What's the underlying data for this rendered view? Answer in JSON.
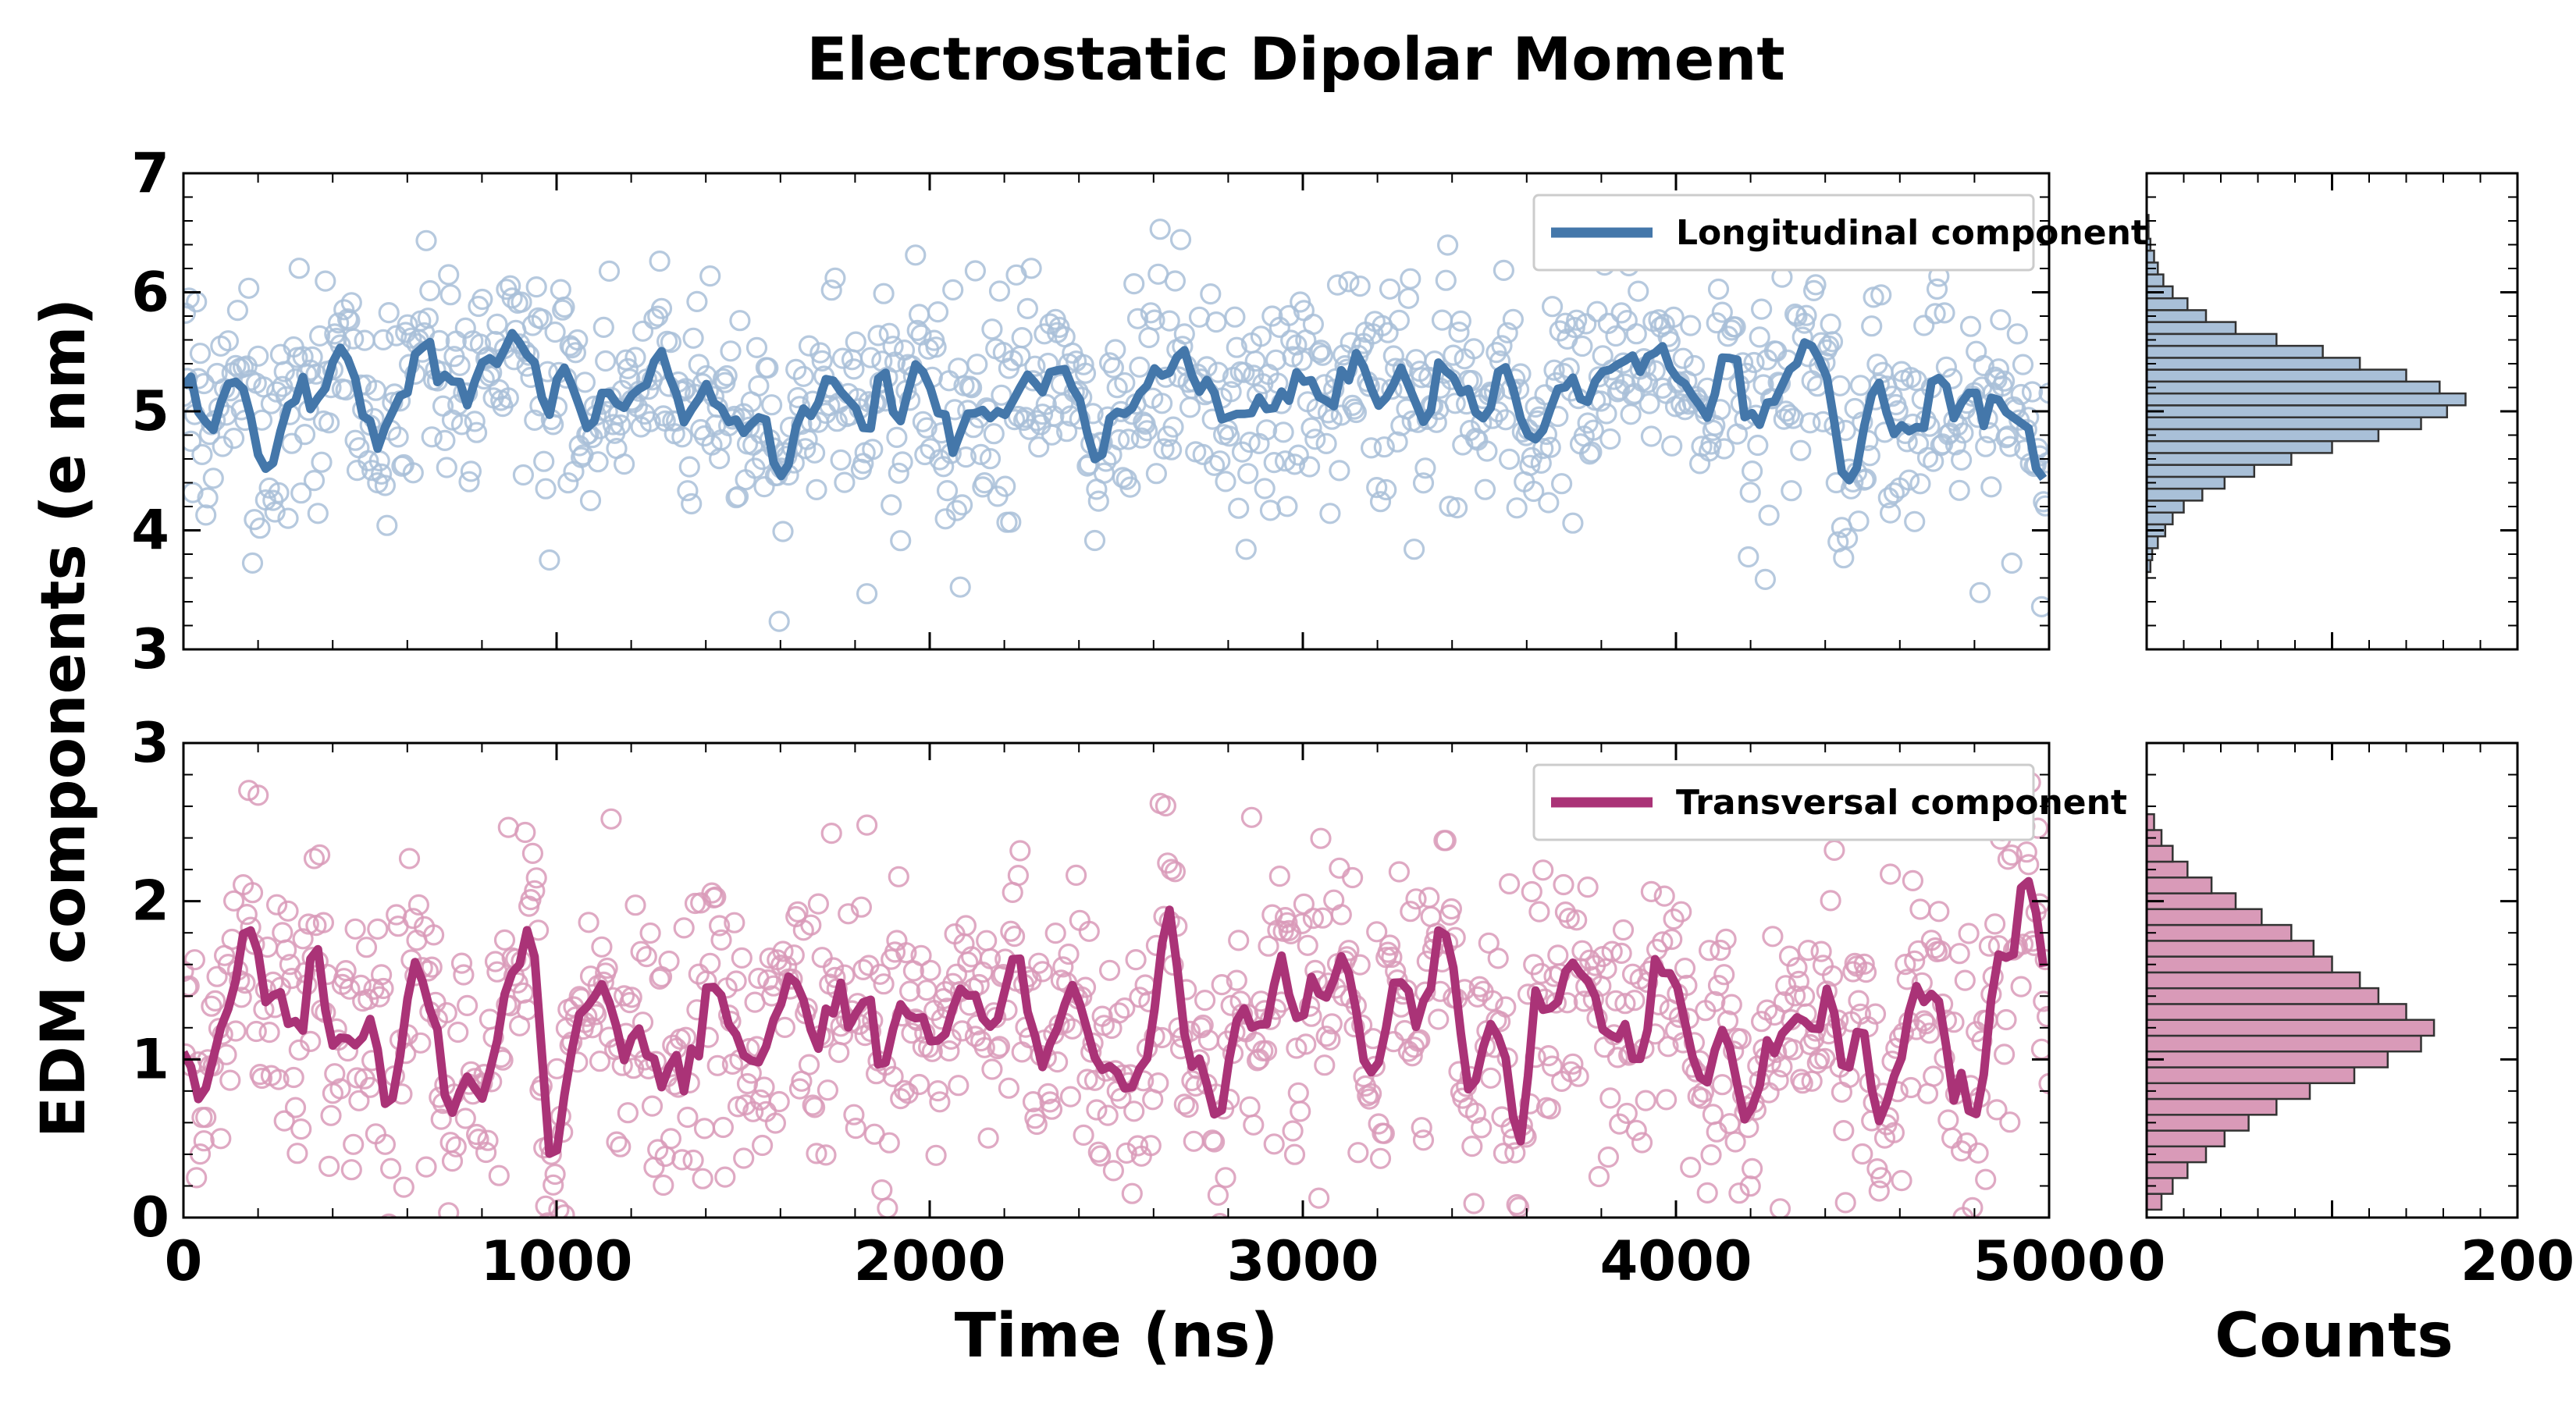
{
  "title": "Electrostatic Dipolar Moment",
  "shared_ylabel": "EDM components (e nm)",
  "colors": {
    "longitudinal": "#4477AA",
    "longitudinal_fill": "#A9C0D8",
    "transversal": "#AA3377",
    "transversal_fill": "#D99AB8",
    "hist_edge": "#333333"
  },
  "chart_data": [
    {
      "type": "scatter",
      "panel": "top",
      "series": [
        {
          "name": "Longitudinal component",
          "style": "line"
        }
      ],
      "xlabel": "",
      "xlim": [
        0,
        5000
      ],
      "xticks": [
        0,
        1000,
        2000,
        3000,
        4000,
        5000
      ],
      "ylim": [
        3,
        7
      ],
      "yticks": [
        3,
        4,
        5,
        6,
        7
      ],
      "legend": "top-right",
      "n_points": 1000,
      "mean": 5.1,
      "spread_sd": 0.45,
      "running_mean_sd": 0.25
    },
    {
      "type": "scatter",
      "panel": "bottom",
      "series": [
        {
          "name": "Transversal component",
          "style": "line"
        }
      ],
      "xlabel": "Time (ns)",
      "xlim": [
        0,
        5000
      ],
      "xticks": [
        0,
        1000,
        2000,
        3000,
        4000,
        5000
      ],
      "ylim": [
        0,
        3
      ],
      "yticks": [
        0,
        1,
        2,
        3
      ],
      "legend": "top-right",
      "n_points": 1000,
      "mean": 1.2,
      "spread_sd": 0.42,
      "running_mean_sd": 0.3
    },
    {
      "type": "bar",
      "orientation": "horizontal",
      "panel": "top-histogram",
      "xlim": [
        0,
        200
      ],
      "ylim": [
        3,
        7
      ],
      "bins": [
        3.7,
        3.8,
        3.9,
        4.0,
        4.1,
        4.2,
        4.3,
        4.4,
        4.5,
        4.6,
        4.7,
        4.8,
        4.9,
        5.0,
        5.1,
        5.2,
        5.3,
        5.4,
        5.5,
        5.6,
        5.7,
        5.8,
        5.9,
        6.0,
        6.1,
        6.2,
        6.3,
        6.4,
        6.5,
        6.6
      ],
      "values": [
        2,
        3,
        6,
        10,
        14,
        20,
        30,
        42,
        58,
        78,
        100,
        125,
        148,
        162,
        172,
        158,
        140,
        115,
        95,
        70,
        48,
        32,
        22,
        14,
        9,
        6,
        4,
        2,
        1,
        1
      ]
    },
    {
      "type": "bar",
      "orientation": "horizontal",
      "panel": "bottom-histogram",
      "xlabel": "Counts",
      "xlim": [
        0,
        200
      ],
      "xticks": [
        0,
        200
      ],
      "ylim": [
        0,
        3
      ],
      "bins": [
        0.1,
        0.2,
        0.3,
        0.4,
        0.5,
        0.6,
        0.7,
        0.8,
        0.9,
        1.0,
        1.1,
        1.2,
        1.3,
        1.4,
        1.5,
        1.6,
        1.7,
        1.8,
        1.9,
        2.0,
        2.1,
        2.2,
        2.3,
        2.4,
        2.5
      ],
      "values": [
        8,
        14,
        22,
        32,
        42,
        55,
        70,
        88,
        112,
        130,
        148,
        155,
        140,
        125,
        115,
        100,
        90,
        78,
        62,
        48,
        35,
        22,
        14,
        8,
        4
      ]
    }
  ]
}
